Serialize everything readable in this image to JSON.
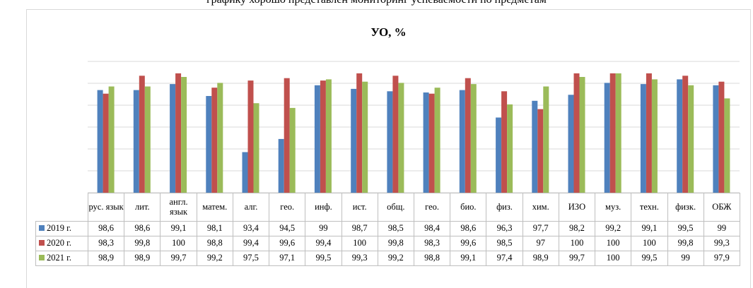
{
  "caption": "графику хорошо представлен мониторинг успеваемости по предметам",
  "chart_data": {
    "type": "bar",
    "title": "УО, %",
    "categories": [
      "рус. язык",
      "лит.",
      "англ. язык",
      "матем.",
      "алг.",
      "гео.",
      "инф.",
      "ист.",
      "общ.",
      "гео.",
      "био.",
      "физ.",
      "хим.",
      "ИЗО",
      "муз.",
      "техн.",
      "физк.",
      "ОБЖ"
    ],
    "series": [
      {
        "name": "2019 г.",
        "color": "#4f81bd",
        "values": [
          "98,6",
          "98,6",
          "99,1",
          "98,1",
          "93,4",
          "94,5",
          "99",
          "98,7",
          "98,5",
          "98,4",
          "98,6",
          "96,3",
          "97,7",
          "98,2",
          "99,2",
          "99,1",
          "99,5",
          "99"
        ]
      },
      {
        "name": "2020 г.",
        "color": "#c0504d",
        "values": [
          "98,3",
          "99,8",
          "100",
          "98,8",
          "99,4",
          "99,6",
          "99,4",
          "100",
          "99,8",
          "98,3",
          "99,6",
          "98,5",
          "97",
          "100",
          "100",
          "100",
          "99,8",
          "99,3"
        ]
      },
      {
        "name": "2021 г.",
        "color": "#9bbb59",
        "values": [
          "98,9",
          "98,9",
          "99,7",
          "99,2",
          "97,5",
          "97,1",
          "99,5",
          "99,3",
          "99,2",
          "98,8",
          "99,1",
          "97,4",
          "98,9",
          "99,7",
          "100",
          "99,5",
          "99",
          "97,9"
        ]
      }
    ],
    "ylim": [
      90,
      101
    ],
    "grid": true,
    "legend": "data-table-left"
  }
}
